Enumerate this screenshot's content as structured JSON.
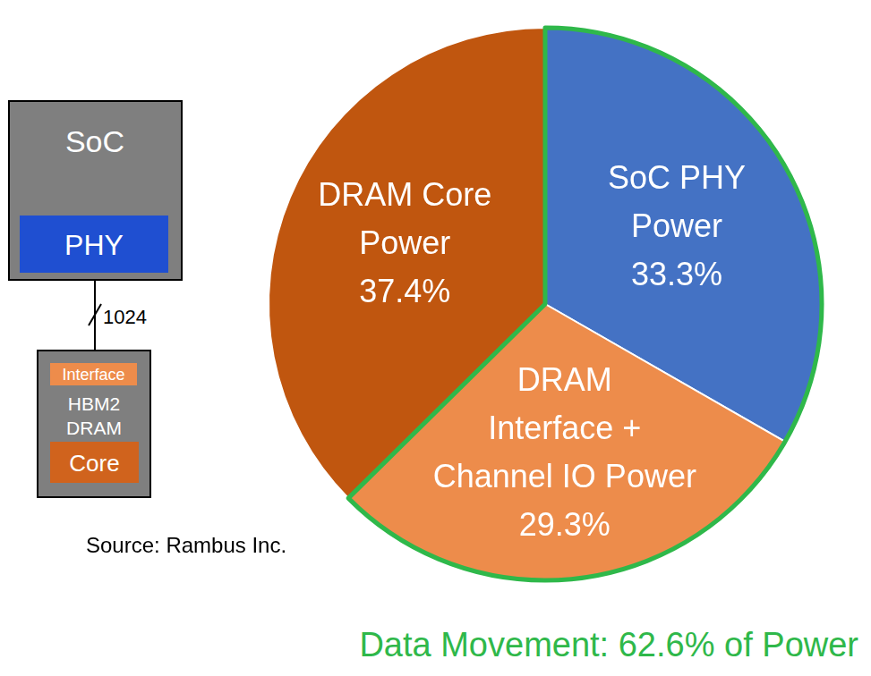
{
  "chart_data": {
    "type": "pie",
    "categories": [
      "SoC PHY\nPower",
      "DRAM\nInterface +\nChannel IO Power",
      "DRAM Core\nPower"
    ],
    "values": [
      33.3,
      29.3,
      37.4
    ],
    "value_labels": [
      "33.3%",
      "29.3%",
      "37.4%"
    ],
    "colors": [
      "#4472c4",
      "#ed8c4b",
      "#c0560f"
    ],
    "data_labels": true,
    "annotations": [
      {
        "text": "Data Movement: 62.6% of Power",
        "color": "#2fb84a",
        "categories": [
          "SoC PHY\nPower",
          "DRAM\nInterface +\nChannel IO Power"
        ]
      }
    ],
    "source": "Source: Rambus Inc."
  },
  "diagram": {
    "soc": {
      "label": "SoC",
      "color": "#7f7f7f"
    },
    "phy": {
      "label": "PHY",
      "color": "#1f4fd1"
    },
    "bus": "1024",
    "dram": {
      "label": "HBM2\nDRAM",
      "color": "#7f7f7f",
      "interface": {
        "label": "Interface",
        "color": "#ed8c4b"
      },
      "core": {
        "label": "Core",
        "color": "#d0631d"
      }
    }
  }
}
